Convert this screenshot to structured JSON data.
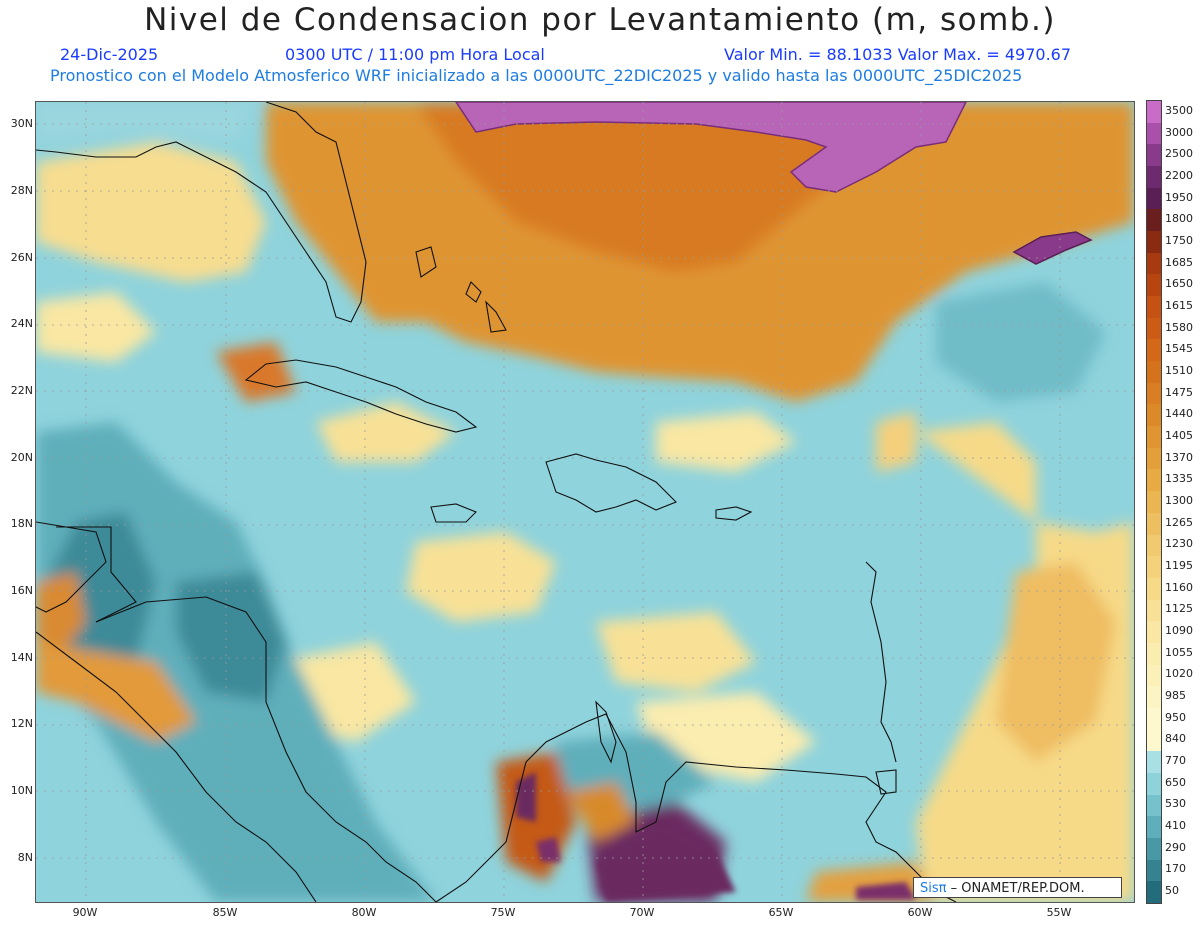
{
  "header": {
    "title": "Nivel de Condensacion por Levantamiento (m, somb.)",
    "date": "24-Dic-2025",
    "time": "0300 UTC / 11:00 pm Hora Local",
    "min_max": "Valor Min. = 88.1033  Valor Max. = 4970.67",
    "model_info": "Pronostico con el Modelo Atmosferico WRF inicializado a las 0000UTC_22DIC2025 y valido hasta las  0000UTC_25DIC2025"
  },
  "axes": {
    "lat_labels": [
      "30N",
      "28N",
      "26N",
      "24N",
      "22N",
      "20N",
      "18N",
      "16N",
      "14N",
      "12N",
      "10N",
      "8N"
    ],
    "lon_labels": [
      "90W",
      "85W",
      "80W",
      "75W",
      "70W",
      "65W",
      "60W",
      "55W"
    ]
  },
  "colorbar": {
    "levels": [
      "3500",
      "3000",
      "2500",
      "2200",
      "1950",
      "1800",
      "1750",
      "1685",
      "1650",
      "1615",
      "1580",
      "1545",
      "1510",
      "1475",
      "1440",
      "1405",
      "1370",
      "1335",
      "1300",
      "1265",
      "1230",
      "1195",
      "1160",
      "1125",
      "1090",
      "1055",
      "1020",
      "985",
      "950",
      "840",
      "770",
      "650",
      "530",
      "410",
      "290",
      "170",
      "50"
    ],
    "colors": [
      "#c86cc8",
      "#aa4faa",
      "#8a3a8a",
      "#6e2a6e",
      "#5a1f55",
      "#6a1e1e",
      "#8a2a10",
      "#a83a10",
      "#b84510",
      "#c55212",
      "#cc5c15",
      "#d26818",
      "#d5731c",
      "#d97e22",
      "#dc8a28",
      "#e09530",
      "#e4a038",
      "#e8ab44",
      "#ebb552",
      "#eebf60",
      "#f1c96e",
      "#f4d27c",
      "#f6da88",
      "#f8e196",
      "#f9e7a3",
      "#fbecaf",
      "#fcf0b9",
      "#fdf4c4",
      "#fef8cf",
      "#fef8cf",
      "#a8e0e6",
      "#8ed2da",
      "#76c2cc",
      "#5eafbb",
      "#4898a6",
      "#358291",
      "#226c7c"
    ]
  },
  "credit": {
    "brand": "Sisπ",
    "text": " – ONAMET/REP.DOM."
  }
}
